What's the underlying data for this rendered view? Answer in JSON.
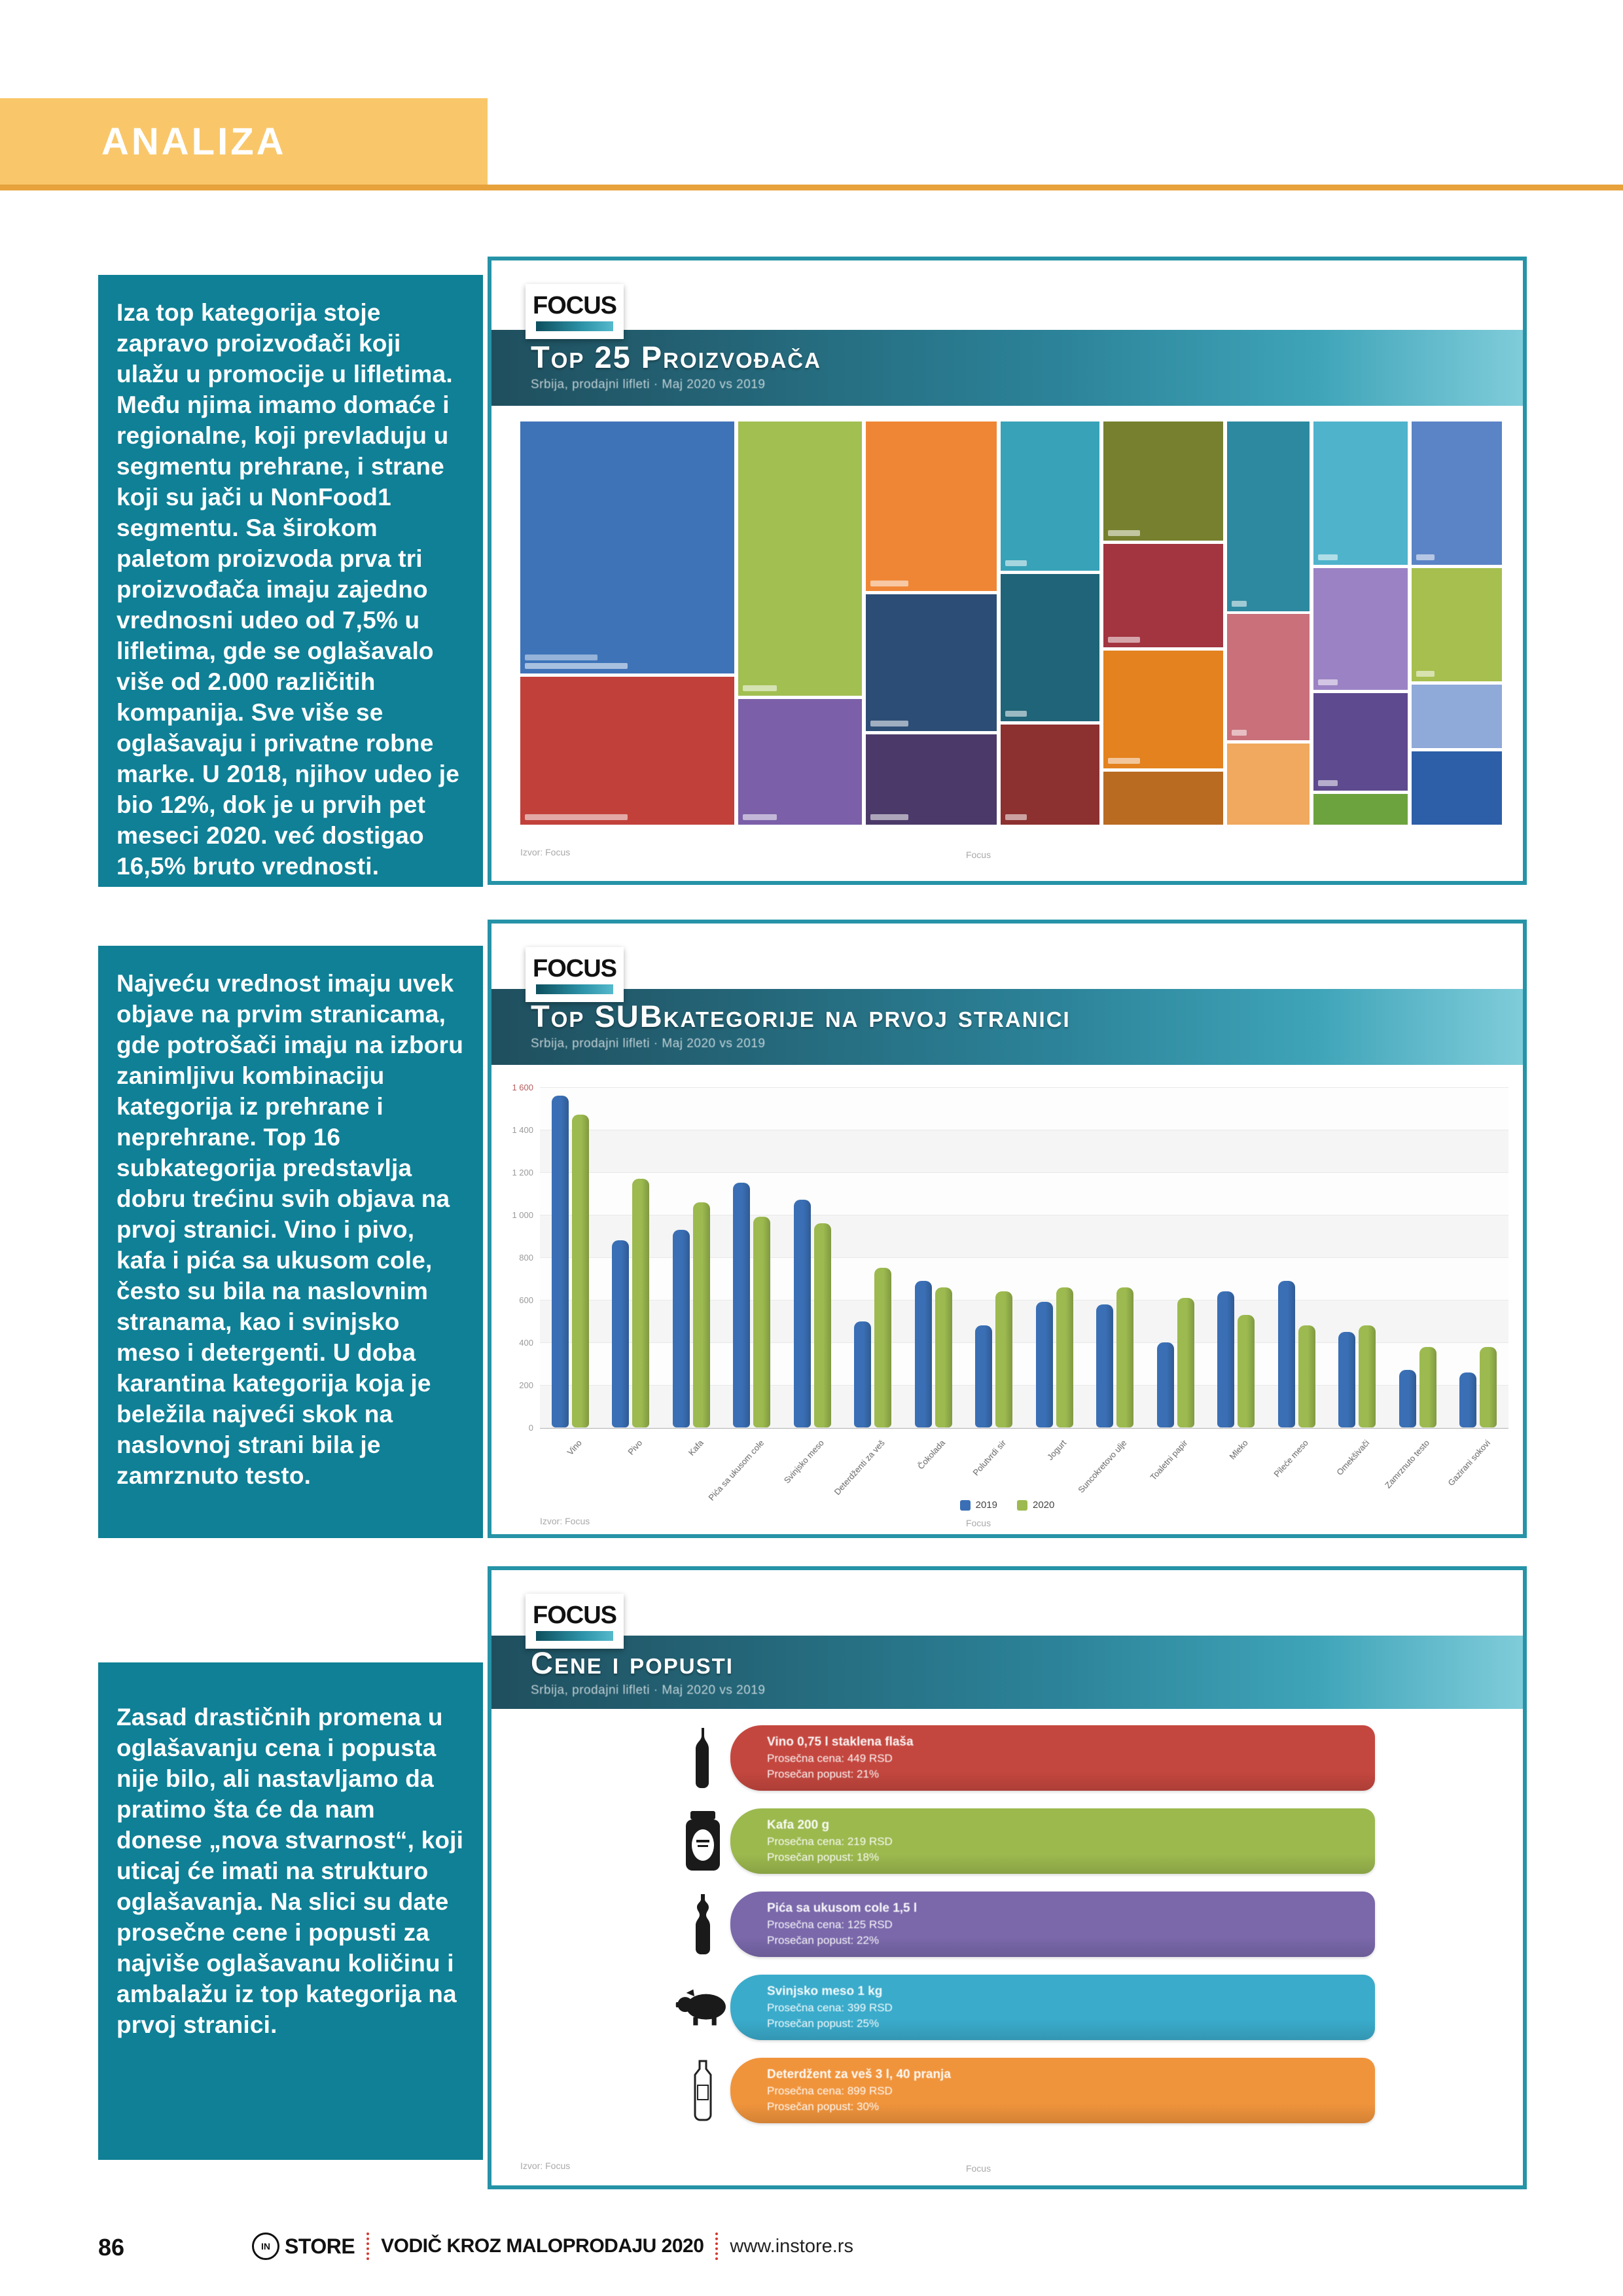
{
  "header": {
    "label": "ANALIZA"
  },
  "colors": {
    "accent_teal": "#0f8096",
    "header_orange": "#f9c76a",
    "header_rule": "#e7a23c",
    "panel_border": "#2693a7",
    "bar_2019_blue": "#3a6fb5",
    "bar_2020_green": "#9cba4f"
  },
  "sections": [
    {
      "paragraph": "Iza top kategorija stoje zapravo proizvođači koji ulažu u promocije u lifletima. Među njima imamo domaće i regionalne, koji prevladuju u segmentu prehrane, i strane koji su jači u NonFood1 segmentu. Sa širokom paletom proizvoda prva tri proizvođača imaju zajedno vrednosni udeo od 7,5% u lifletima, gde se oglašavalo više od 2.000 različitih kompanija. Sve više se oglašavaju i privatne robne marke. U 2018, njihov udeo je bio 12%, dok je u prvih pet meseci 2020. već dostigao 16,5% bruto vrednosti."
    },
    {
      "paragraph": "Najveću vrednost imaju uvek objave na prvim stranicama, gde potrošači imaju na izboru zanimljivu kombinaciju kategorija iz prehrane i neprehrane. Top 16 subkategorija predstavlja dobru trećinu svih objava na prvoj stranici. Vino i pivo, kafa i pića sa ukusom cole, često su bila na naslovnim stranama, kao i svinjsko meso i detergenti. U doba karantina kategorija koja je beležila najveći skok na naslovnoj strani bila je zamrznuto testo."
    },
    {
      "paragraph": "Zasad drastičnih promena u oglašavanju cena i popusta nije bilo, ali nastavljamo da pratimo šta će da nam donese „nova stvarnost“, koji uticaj će imati na strukturo oglašavanja. Na slici su date prosečne cene i popusti za najviše oglašavanu količinu i ambalažu iz top kategorija na prvoj stranici."
    }
  ],
  "panels": [
    {
      "logo": "FOCUS",
      "title": "Top 25 Proizvođača",
      "subtitle": "Srbija, prodajni lifleti · Maj 2020 vs 2019",
      "footnote_left": "Izvor: Focus",
      "footnote_center": "Focus"
    },
    {
      "logo": "FOCUS",
      "title": "Top SUBkategorije na prvoj stranici",
      "subtitle": "Srbija, prodajni lifleti · Maj 2020 vs 2019",
      "footnote_left": "Izvor: Focus",
      "footnote_center": "Focus"
    },
    {
      "logo": "FOCUS",
      "title": "Cene i popusti",
      "subtitle": "Srbija, prodajni lifleti · Maj 2020 vs 2019",
      "footnote_left": "Izvor: Focus",
      "footnote_center": "Focus"
    }
  ],
  "footer": {
    "page_number": "86",
    "brand_circle": "IN",
    "brand": "STORE",
    "guide_title": "VODIČ KROZ MALOPRODAJU 2020",
    "website": "www.instore.rs"
  },
  "chart_data": [
    {
      "type": "treemap",
      "title": "Top 25 Proizvođača",
      "note": "block sizes estimated from pixels; block labels illegible in source",
      "blocks": [
        {
          "label": "",
          "color": "#3e73b8",
          "x": 0,
          "y": 0,
          "w": 21.8,
          "h": 62.5
        },
        {
          "label": "",
          "color": "#c1413a",
          "x": 0,
          "y": 63.3,
          "w": 21.8,
          "h": 36.7
        },
        {
          "label": "",
          "color": "#a2bf52",
          "x": 22.2,
          "y": 0,
          "w": 12.6,
          "h": 68
        },
        {
          "label": "",
          "color": "#7b5fa8",
          "x": 22.2,
          "y": 68.8,
          "w": 12.6,
          "h": 31.2
        },
        {
          "label": "",
          "color": "#ef8636",
          "x": 35.2,
          "y": 0,
          "w": 13.3,
          "h": 42
        },
        {
          "label": "",
          "color": "#2c4d75",
          "x": 35.2,
          "y": 42.8,
          "w": 13.3,
          "h": 34
        },
        {
          "label": "",
          "color": "#4b3a69",
          "x": 35.2,
          "y": 77.6,
          "w": 13.3,
          "h": 22.4
        },
        {
          "label": "",
          "color": "#38a2b8",
          "x": 48.9,
          "y": 0,
          "w": 10.1,
          "h": 37
        },
        {
          "label": "",
          "color": "#1f6478",
          "x": 48.9,
          "y": 37.8,
          "w": 10.1,
          "h": 36.6
        },
        {
          "label": "",
          "color": "#8c3030",
          "x": 48.9,
          "y": 75.2,
          "w": 10.1,
          "h": 24.8
        },
        {
          "label": "",
          "color": "#76802e",
          "x": 59.4,
          "y": 0,
          "w": 12.2,
          "h": 29.5
        },
        {
          "label": "",
          "color": "#a23540",
          "x": 59.4,
          "y": 30.3,
          "w": 12.2,
          "h": 25.7
        },
        {
          "label": "",
          "color": "#e3821f",
          "x": 59.4,
          "y": 56.8,
          "w": 12.2,
          "h": 29.2
        },
        {
          "label": "",
          "color": "#b96b21",
          "x": 59.4,
          "y": 86.8,
          "w": 12.2,
          "h": 13.2
        },
        {
          "label": "",
          "color": "#2d89a0",
          "x": 72.0,
          "y": 0,
          "w": 8.4,
          "h": 47
        },
        {
          "label": "",
          "color": "#c9707a",
          "x": 72.0,
          "y": 47.8,
          "w": 8.4,
          "h": 31.2
        },
        {
          "label": "",
          "color": "#f0a95e",
          "x": 72.0,
          "y": 79.8,
          "w": 8.4,
          "h": 20.2
        },
        {
          "label": "",
          "color": "#4fb3cc",
          "x": 80.8,
          "y": 0,
          "w": 9.6,
          "h": 35.5
        },
        {
          "label": "",
          "color": "#9b82c4",
          "x": 80.8,
          "y": 36.3,
          "w": 9.6,
          "h": 30.2
        },
        {
          "label": "",
          "color": "#5e4a8e",
          "x": 80.8,
          "y": 67.3,
          "w": 9.6,
          "h": 24.2
        },
        {
          "label": "",
          "color": "#6da33f",
          "x": 80.8,
          "y": 92.3,
          "w": 9.6,
          "h": 7.7
        },
        {
          "label": "",
          "color": "#5b84c6",
          "x": 90.8,
          "y": 0,
          "w": 9.2,
          "h": 35.5
        },
        {
          "label": "",
          "color": "#a6bf4e",
          "x": 90.8,
          "y": 36.3,
          "w": 9.2,
          "h": 28.2
        },
        {
          "label": "",
          "color": "#8fa9d8",
          "x": 90.8,
          "y": 65.3,
          "w": 9.2,
          "h": 15.7
        },
        {
          "label": "",
          "color": "#2d5fa9",
          "x": 90.8,
          "y": 81.8,
          "w": 9.2,
          "h": 18.2
        }
      ]
    },
    {
      "type": "bar",
      "title": "Top SUBkategorije na prvoj stranici",
      "categories": [
        "Vino",
        "Pivo",
        "Kafa",
        "Pića sa ukusom cole",
        "Svinjsko meso",
        "Deterdženti za veš",
        "Čokolada",
        "Polutvrdi sir",
        "Jogurt",
        "Suncokretovo ulje",
        "Toaletni papir",
        "Mleko",
        "Pileće meso",
        "Omekšivači",
        "Zamrznuto testo",
        "Gazirani sokovi"
      ],
      "series": [
        {
          "name": "2019",
          "color": "#3a6fb5",
          "values": [
            1560,
            880,
            930,
            1150,
            1070,
            500,
            690,
            480,
            590,
            580,
            400,
            640,
            690,
            450,
            270,
            260
          ]
        },
        {
          "name": "2020",
          "color": "#9cba4f",
          "values": [
            1470,
            1170,
            1060,
            990,
            960,
            750,
            660,
            640,
            660,
            660,
            610,
            530,
            480,
            480,
            380,
            380
          ]
        }
      ],
      "ylim": [
        0,
        1600
      ],
      "yticks": [
        "1 600",
        "1 400",
        "1 200",
        "1 000",
        "800",
        "600",
        "400",
        "200",
        "0"
      ],
      "legend_position": "bottom-center",
      "grid": true,
      "note": "axis and category labels are near-illegible in source; values estimated from bar heights"
    },
    {
      "type": "bar-horizontal",
      "title": "Cene i popusti",
      "note": "in-bar text illegible in source; reconstructed to match 3-line pattern (category/pakovanje, prosečna cena, prosečan popust)",
      "items": [
        {
          "icon": "wine-bottle-icon",
          "color": "#c4473f",
          "lines": [
            "Vino 0,75 l staklena flaša",
            "Prosečna cena: 449 RSD",
            "Prosečan popust: 21%"
          ]
        },
        {
          "icon": "coffee-jar-icon",
          "color": "#9cb94e",
          "lines": [
            "Kafa 200 g",
            "Prosečna cena: 219 RSD",
            "Prosečan popust: 18%"
          ]
        },
        {
          "icon": "cola-bottle-icon",
          "color": "#7a68ab",
          "lines": [
            "Pića sa ukusom cole 1,5 l",
            "Prosečna cena: 125 RSD",
            "Prosečan popust: 22%"
          ]
        },
        {
          "icon": "pig-icon",
          "color": "#3aabcb",
          "lines": [
            "Svinjsko meso 1 kg",
            "Prosečna cena: 399 RSD",
            "Prosečan popust: 25%"
          ]
        },
        {
          "icon": "detergent-bottle-icon",
          "color": "#f0943c",
          "lines": [
            "Deterdžent za veš 3 l, 40 pranja",
            "Prosečna cena: 899 RSD",
            "Prosečan popust: 30%"
          ]
        }
      ]
    }
  ]
}
